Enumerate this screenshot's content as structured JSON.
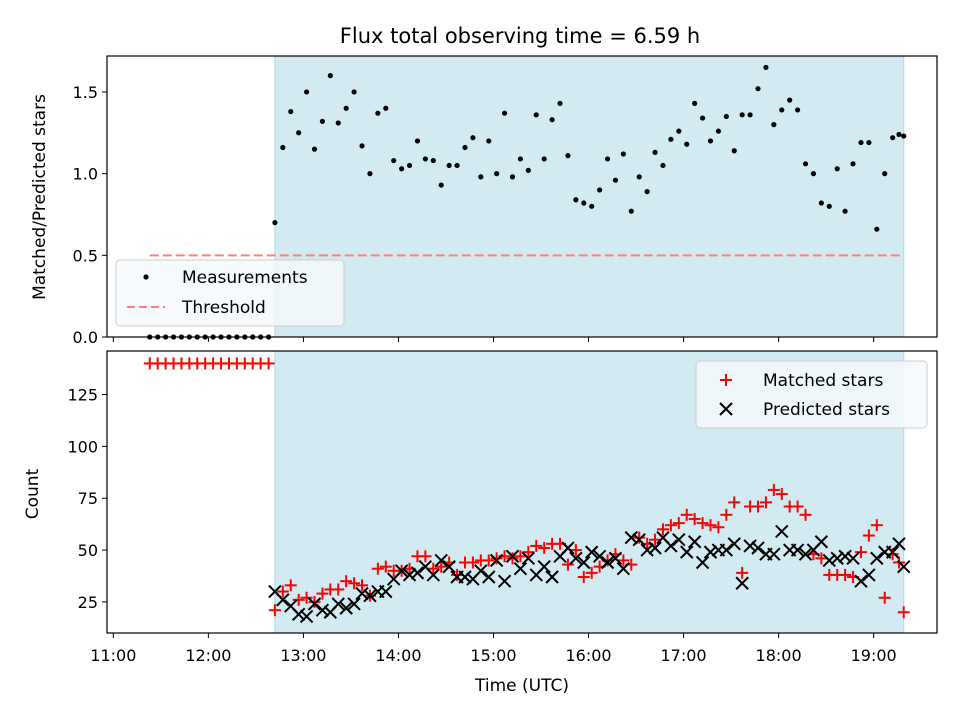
{
  "title": "Flux total observing time = 6.59 h",
  "xlabel": "Time (UTC)",
  "colors": {
    "shade": "#add8e6",
    "threshold": "#ff7f7f",
    "matched": "#ff0000",
    "predicted": "#000000",
    "measurement": "#000000"
  },
  "chart_data": [
    {
      "type": "scatter",
      "panel": "top",
      "ylabel": "Matched/Predicted stars",
      "xlim": [
        "10:56",
        "19:40"
      ],
      "ylim": [
        0,
        1.72
      ],
      "yticks": [
        "0.0",
        "0.5",
        "1.0",
        "1.5"
      ],
      "xticks": [
        "11:00",
        "12:00",
        "13:00",
        "14:00",
        "15:00",
        "16:00",
        "17:00",
        "18:00",
        "19:00"
      ],
      "shaded_interval": [
        "12:42",
        "19:19"
      ],
      "legend": {
        "placement": "lower-left",
        "entries": [
          "Measurements",
          "Threshold"
        ]
      },
      "threshold": {
        "name": "Threshold",
        "value": 0.5,
        "x": [
          "11:23",
          "19:19"
        ]
      },
      "series": [
        {
          "name": "Measurements",
          "x": [
            "11:23",
            "11:28",
            "11:33",
            "11:38",
            "11:43",
            "11:48",
            "11:53",
            "11:58",
            "12:03",
            "12:08",
            "12:13",
            "12:18",
            "12:23",
            "12:28",
            "12:33",
            "12:38",
            "12:42",
            "12:47",
            "12:52",
            "12:57",
            "13:02",
            "13:07",
            "13:12",
            "13:17",
            "13:22",
            "13:27",
            "13:32",
            "13:37",
            "13:42",
            "13:47",
            "13:52",
            "13:57",
            "14:02",
            "14:07",
            "14:12",
            "14:17",
            "14:22",
            "14:27",
            "14:32",
            "14:37",
            "14:42",
            "14:47",
            "14:52",
            "14:57",
            "15:02",
            "15:07",
            "15:12",
            "15:17",
            "15:22",
            "15:27",
            "15:32",
            "15:37",
            "15:42",
            "15:47",
            "15:52",
            "15:57",
            "16:02",
            "16:07",
            "16:12",
            "16:17",
            "16:22",
            "16:27",
            "16:32",
            "16:37",
            "16:42",
            "16:47",
            "16:52",
            "16:57",
            "17:02",
            "17:07",
            "17:12",
            "17:17",
            "17:22",
            "17:27",
            "17:32",
            "17:37",
            "17:42",
            "17:47",
            "17:52",
            "17:57",
            "18:02",
            "18:07",
            "18:12",
            "18:17",
            "18:22",
            "18:27",
            "18:32",
            "18:37",
            "18:42",
            "18:47",
            "18:52",
            "18:57",
            "19:02",
            "19:07",
            "19:12",
            "19:16",
            "19:19"
          ],
          "y": [
            0,
            0,
            0,
            0,
            0,
            0,
            0,
            0,
            0,
            0,
            0,
            0,
            0,
            0,
            0,
            0,
            0.7,
            1.16,
            1.38,
            1.25,
            1.5,
            1.15,
            1.32,
            1.6,
            1.31,
            1.4,
            1.5,
            1.17,
            1.0,
            1.37,
            1.4,
            1.08,
            1.03,
            1.05,
            1.2,
            1.09,
            1.08,
            0.93,
            1.05,
            1.05,
            1.16,
            1.22,
            0.98,
            1.2,
            1.0,
            1.37,
            0.98,
            1.09,
            1.02,
            1.36,
            1.09,
            1.33,
            1.43,
            1.11,
            0.84,
            0.82,
            0.8,
            0.9,
            1.09,
            0.96,
            1.12,
            0.77,
            0.98,
            0.89,
            1.13,
            1.05,
            1.21,
            1.26,
            1.18,
            1.43,
            1.34,
            1.2,
            1.26,
            1.35,
            1.14,
            1.36,
            1.36,
            1.52,
            1.65,
            1.3,
            1.39,
            1.45,
            1.39,
            1.06,
            1.0,
            0.82,
            0.8,
            1.03,
            0.77,
            1.06,
            1.19,
            1.19,
            0.66,
            1.0,
            1.22,
            1.24,
            1.23
          ]
        }
      ]
    },
    {
      "type": "scatter",
      "panel": "bottom",
      "ylabel": "Count",
      "xlim": [
        "10:56",
        "19:40"
      ],
      "ylim": [
        10,
        146
      ],
      "yticks": [
        "25",
        "50",
        "75",
        "100",
        "125"
      ],
      "xticks": [
        "11:00",
        "12:00",
        "13:00",
        "14:00",
        "15:00",
        "16:00",
        "17:00",
        "18:00",
        "19:00"
      ],
      "shaded_interval": [
        "12:42",
        "19:19"
      ],
      "legend": {
        "placement": "top-right",
        "entries": [
          "Matched stars",
          "Predicted stars"
        ]
      },
      "series": [
        {
          "name": "Matched stars",
          "x": [
            "11:23",
            "11:28",
            "11:33",
            "11:38",
            "11:43",
            "11:48",
            "11:53",
            "11:58",
            "12:03",
            "12:08",
            "12:13",
            "12:18",
            "12:23",
            "12:28",
            "12:33",
            "12:38",
            "12:42",
            "12:47",
            "12:52",
            "12:57",
            "13:02",
            "13:07",
            "13:12",
            "13:17",
            "13:22",
            "13:27",
            "13:32",
            "13:37",
            "13:42",
            "13:47",
            "13:52",
            "13:57",
            "14:02",
            "14:07",
            "14:12",
            "14:17",
            "14:22",
            "14:27",
            "14:32",
            "14:37",
            "14:42",
            "14:47",
            "14:52",
            "14:57",
            "15:02",
            "15:07",
            "15:12",
            "15:17",
            "15:22",
            "15:27",
            "15:32",
            "15:37",
            "15:42",
            "15:47",
            "15:52",
            "15:57",
            "16:02",
            "16:07",
            "16:12",
            "16:17",
            "16:22",
            "16:27",
            "16:32",
            "16:37",
            "16:42",
            "16:47",
            "16:52",
            "16:57",
            "17:02",
            "17:07",
            "17:12",
            "17:17",
            "17:22",
            "17:27",
            "17:32",
            "17:37",
            "17:42",
            "17:47",
            "17:52",
            "17:57",
            "18:02",
            "18:07",
            "18:12",
            "18:17",
            "18:22",
            "18:27",
            "18:32",
            "18:37",
            "18:42",
            "18:47",
            "18:52",
            "18:57",
            "19:02",
            "19:07",
            "19:12",
            "19:16",
            "19:19"
          ],
          "y": [
            140,
            140,
            140,
            140,
            140,
            140,
            140,
            140,
            140,
            140,
            140,
            140,
            140,
            140,
            140,
            140,
            21,
            30,
            33,
            26,
            27,
            25,
            29,
            31,
            31,
            35,
            34,
            33,
            28,
            41,
            42,
            40,
            40,
            41,
            47,
            47,
            41,
            42,
            44,
            38,
            44,
            44,
            45,
            45,
            46,
            47,
            46,
            47,
            49,
            52,
            51,
            53,
            53,
            43,
            50,
            37,
            39,
            42,
            45,
            48,
            45,
            43,
            56,
            53,
            55,
            60,
            62,
            63,
            67,
            65,
            63,
            62,
            61,
            67,
            73,
            39,
            71,
            71,
            73,
            79,
            77,
            71,
            71,
            67,
            48,
            46,
            38,
            38,
            38,
            37,
            49,
            57,
            62,
            27,
            48,
            44,
            20
          ]
        },
        {
          "name": "Predicted stars",
          "x": [
            "12:42",
            "12:47",
            "12:52",
            "12:57",
            "13:02",
            "13:07",
            "13:12",
            "13:17",
            "13:22",
            "13:27",
            "13:32",
            "13:37",
            "13:42",
            "13:47",
            "13:52",
            "13:57",
            "14:02",
            "14:07",
            "14:12",
            "14:17",
            "14:22",
            "14:27",
            "14:32",
            "14:37",
            "14:42",
            "14:47",
            "14:52",
            "14:57",
            "15:02",
            "15:07",
            "15:12",
            "15:17",
            "15:22",
            "15:27",
            "15:32",
            "15:37",
            "15:42",
            "15:47",
            "15:52",
            "15:57",
            "16:02",
            "16:07",
            "16:12",
            "16:17",
            "16:22",
            "16:27",
            "16:32",
            "16:37",
            "16:42",
            "16:47",
            "16:52",
            "16:57",
            "17:02",
            "17:07",
            "17:12",
            "17:17",
            "17:22",
            "17:27",
            "17:32",
            "17:37",
            "17:42",
            "17:47",
            "17:52",
            "17:57",
            "18:02",
            "18:07",
            "18:12",
            "18:17",
            "18:22",
            "18:27",
            "18:32",
            "18:37",
            "18:42",
            "18:47",
            "18:52",
            "18:57",
            "19:02",
            "19:07",
            "19:12",
            "19:16",
            "19:19"
          ],
          "y": [
            30,
            26,
            23,
            19,
            18,
            24,
            21,
            20,
            24,
            22,
            24,
            29,
            28,
            30,
            30,
            36,
            40,
            38,
            39,
            42,
            38,
            45,
            42,
            37,
            37,
            36,
            40,
            37,
            45,
            35,
            47,
            41,
            46,
            38,
            42,
            37,
            47,
            51,
            46,
            44,
            49,
            47,
            44,
            46,
            41,
            56,
            55,
            50,
            51,
            56,
            52,
            55,
            49,
            54,
            44,
            49,
            50,
            50,
            53,
            34,
            52,
            51,
            48,
            48,
            59,
            50,
            50,
            48,
            50,
            54,
            45,
            46,
            47,
            46,
            35,
            38,
            46,
            49,
            49,
            53,
            42
          ]
        }
      ]
    }
  ]
}
